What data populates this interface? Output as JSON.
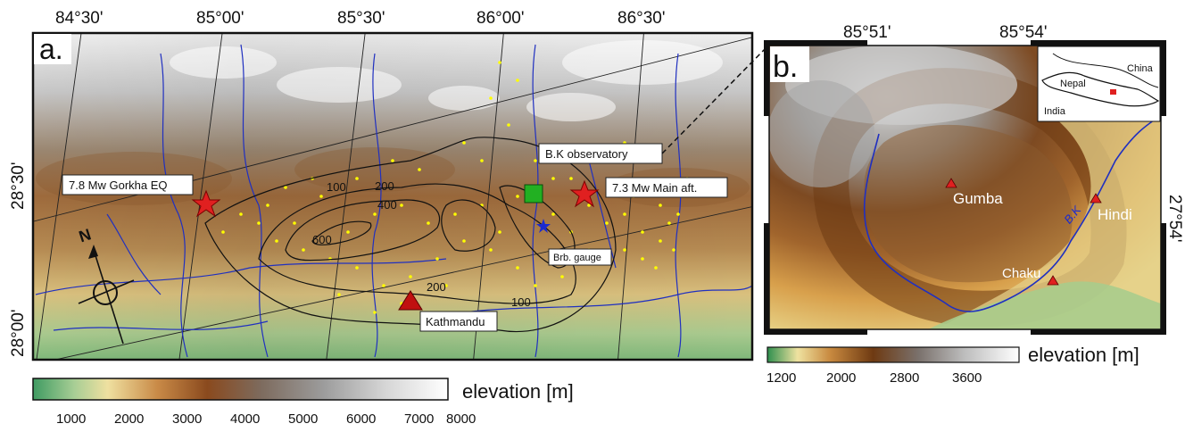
{
  "panel_a": {
    "letter": "a.",
    "top_ticks": [
      "84°30'",
      "85°00'",
      "85°30'",
      "86°00'",
      "86°30'"
    ],
    "left_ticks": [
      "28°30'",
      "28°00'"
    ],
    "labels": {
      "gorkha": "7.8 Mw Gorkha EQ",
      "main_aft": "7.3 Mw Main aft.",
      "observatory": "B.K observatory",
      "gauge": "Brb. gauge",
      "kathmandu": "Kathmandu"
    },
    "contours": [
      "100",
      "200",
      "400",
      "600",
      "200",
      "100"
    ],
    "north": "N",
    "colorbar": {
      "title": "elevation [m]",
      "ticks": [
        "1000",
        "2000",
        "3000",
        "4000",
        "5000",
        "6000",
        "7000",
        "8000"
      ]
    }
  },
  "panel_b": {
    "letter": "b.",
    "top_ticks": [
      "85°51'",
      "85°54'"
    ],
    "right_tick": "27°54'",
    "places": [
      "Gumba",
      "Hindi",
      "Chaku"
    ],
    "river": "B.K",
    "inset": {
      "china": "China",
      "nepal": "Nepal",
      "india": "India"
    },
    "colorbar": {
      "title": "elevation [m]",
      "ticks": [
        "1200",
        "2000",
        "2800",
        "3600"
      ]
    }
  },
  "colors": {
    "epicenter": "#e02020",
    "observatory": "#22b022",
    "gauge": "#1a2ad0",
    "city": "#c01010",
    "aftershock": "#ffff00",
    "river": "#2030c0"
  }
}
